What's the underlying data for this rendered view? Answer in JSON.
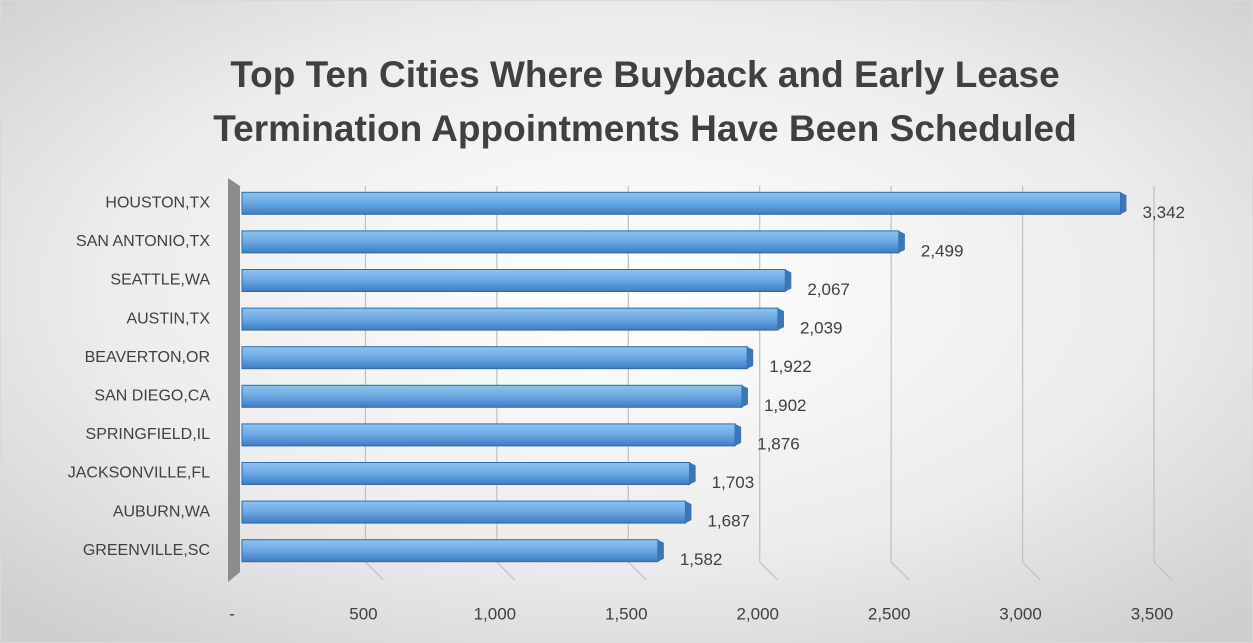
{
  "chart_data": {
    "type": "bar",
    "orientation": "horizontal",
    "title": [
      "Top Ten Cities Where Buyback and Early Lease",
      "Termination Appointments Have Been Scheduled"
    ],
    "categories": [
      "HOUSTON,TX",
      "SAN ANTONIO,TX",
      "SEATTLE,WA",
      "AUSTIN,TX",
      "BEAVERTON,OR",
      "SAN DIEGO,CA",
      "SPRINGFIELD,IL",
      "JACKSONVILLE,FL",
      "AUBURN,WA",
      "GREENVILLE,SC"
    ],
    "values": [
      3342,
      2499,
      2067,
      2039,
      1922,
      1902,
      1876,
      1703,
      1687,
      1582
    ],
    "value_labels": [
      "3,342",
      "2,499",
      "2,067",
      "2,039",
      "1,922",
      "1,902",
      "1,876",
      "1,703",
      "1,687",
      "1,582"
    ],
    "color": "#5b9bd5",
    "xlim": [
      0,
      3500
    ],
    "xticks": [
      {
        "value": 0,
        "label": "-"
      },
      500,
      {
        "value": 1000,
        "label": "1,000"
      },
      {
        "value": 1500,
        "label": "1,500"
      },
      {
        "value": 2000,
        "label": "2,000"
      },
      {
        "value": 2500,
        "label": "2,500"
      },
      {
        "value": 3000,
        "label": "3,000"
      },
      {
        "value": 3500,
        "label": "3,500"
      }
    ],
    "grid": true
  }
}
